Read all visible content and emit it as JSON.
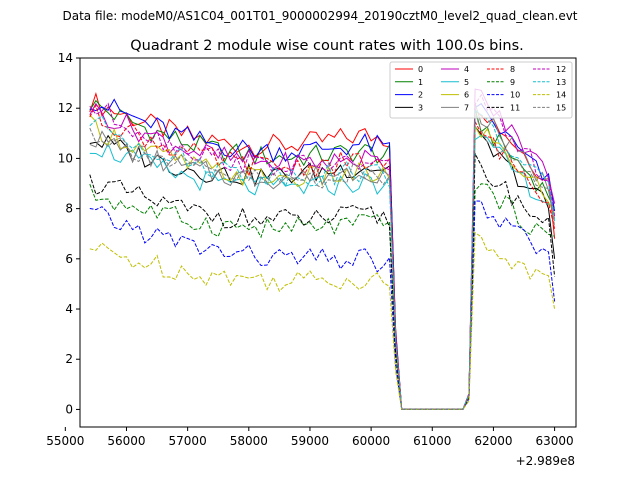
{
  "figure": {
    "header": "Data file: modeM0/AS1C04_001T01_9000002994_20190cztM0_level2_quad_clean.evt"
  },
  "chart_data": {
    "type": "line",
    "title": "Quadrant 2 module wise count rates with 100.0s bins.",
    "xlabel": "",
    "ylabel": "",
    "x_offset_label": "+2.989e8",
    "xlim": [
      55240,
      63350
    ],
    "ylim": [
      -0.7,
      14
    ],
    "x_ticks": [
      55000,
      56000,
      57000,
      58000,
      59000,
      60000,
      61000,
      62000,
      63000
    ],
    "y_ticks": [
      0,
      2,
      4,
      6,
      8,
      10,
      12,
      14
    ],
    "grid": false,
    "legend_location": "top-right",
    "x_range": {
      "start": 55400,
      "end": 63000,
      "step": 100
    },
    "gap": {
      "start": 60500,
      "end": 61500
    },
    "series": [
      {
        "name": "0",
        "color": "#ff0000",
        "style": "solid",
        "start": 12.3,
        "end": 10.8,
        "post": 12.3,
        "final": 6.8
      },
      {
        "name": "1",
        "color": "#008000",
        "style": "solid",
        "start": 12.2,
        "end": 10.1,
        "post": 11.6,
        "final": 8.0
      },
      {
        "name": "2",
        "color": "#0000ff",
        "style": "solid",
        "start": 12.4,
        "end": 10.4,
        "post": 12.2,
        "final": 7.9
      },
      {
        "name": "3",
        "color": "#000000",
        "style": "solid",
        "start": 10.8,
        "end": 9.6,
        "post": 10.9,
        "final": 6.0
      },
      {
        "name": "4",
        "color": "#bf00bf",
        "style": "solid",
        "start": 12.0,
        "end": 9.8,
        "post": 12.7,
        "final": 8.2
      },
      {
        "name": "5",
        "color": "#17becf",
        "style": "solid",
        "start": 10.6,
        "end": 8.9,
        "post": 11.0,
        "final": 8.0
      },
      {
        "name": "6",
        "color": "#bfbf00",
        "style": "solid",
        "start": 11.3,
        "end": 9.2,
        "post": 11.4,
        "final": 7.8
      },
      {
        "name": "7",
        "color": "#7f7f7f",
        "style": "solid",
        "start": 10.9,
        "end": 9.4,
        "post": 12.0,
        "final": 7.6
      },
      {
        "name": "8",
        "color": "#ff0000",
        "style": "dashed",
        "start": 11.8,
        "end": 9.7,
        "post": 11.3,
        "final": 7.2
      },
      {
        "name": "9",
        "color": "#008000",
        "style": "dashed",
        "start": 8.6,
        "end": 7.3,
        "post": 9.1,
        "final": 6.9
      },
      {
        "name": "10",
        "color": "#0000ff",
        "style": "dashed",
        "start": 7.8,
        "end": 5.8,
        "post": 8.2,
        "final": 4.3
      },
      {
        "name": "11",
        "color": "#000000",
        "style": "dashed",
        "start": 9.1,
        "end": 7.6,
        "post": 9.8,
        "final": 5.3
      },
      {
        "name": "12",
        "color": "#bf00bf",
        "style": "dashed",
        "start": 12.1,
        "end": 9.6,
        "post": 12.4,
        "final": 7.7
      },
      {
        "name": "13",
        "color": "#17becf",
        "style": "dashed",
        "start": 11.5,
        "end": 9.3,
        "post": 11.8,
        "final": 7.5
      },
      {
        "name": "14",
        "color": "#bfbf00",
        "style": "dashed",
        "start": 6.4,
        "end": 5.1,
        "post": 6.8,
        "final": 4.0
      },
      {
        "name": "15",
        "color": "#7f7f7f",
        "style": "dashed",
        "start": 11.1,
        "end": 9.2,
        "post": 11.5,
        "final": 7.3
      }
    ]
  }
}
